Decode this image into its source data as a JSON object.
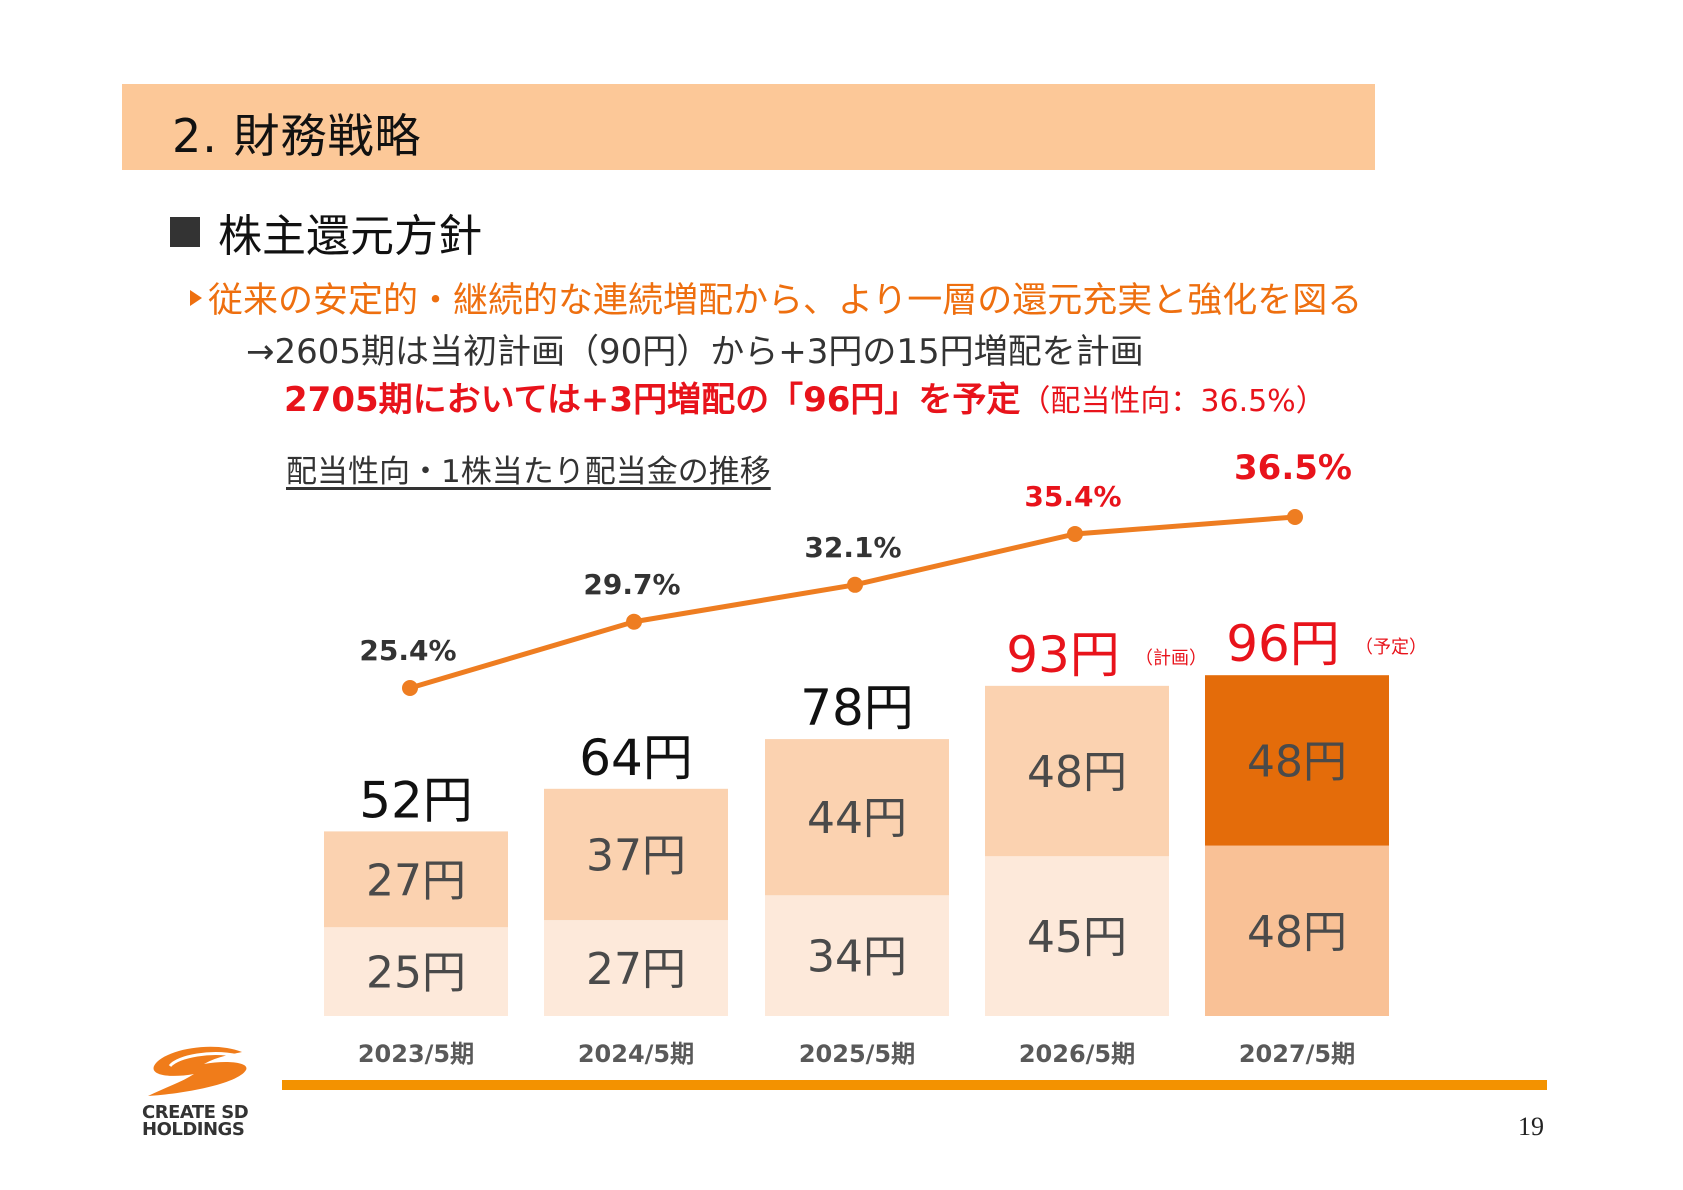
{
  "header": {
    "title": "2.  財務戦略"
  },
  "section": {
    "title": "株主還元方針"
  },
  "text": {
    "line1": "従来の安定的・継続的な連続増配から、より一層の還元充実と強化を図る",
    "line2": "→2605期は当初計画（90円）から+3円の15円増配を計画",
    "line3_main": "2705期においては+3円増配の「96円」を予定",
    "line3_sub": "（配当性向：36.5%）",
    "chart_caption": "配当性向・1株当たり配当金の推移"
  },
  "chart_data": {
    "type": "bar",
    "categories": [
      "2023/5期",
      "2024/5期",
      "2025/5期",
      "2026/5期",
      "2027/5期"
    ],
    "series": [
      {
        "values": [
          25,
          27,
          34,
          45,
          48
        ],
        "labels": [
          "25円",
          "27円",
          "34円",
          "45円",
          "48円"
        ]
      },
      {
        "values": [
          27,
          37,
          44,
          48,
          48
        ],
        "labels": [
          "27円",
          "37円",
          "44円",
          "48円",
          "48円"
        ]
      }
    ],
    "totals": [
      52,
      64,
      78,
      93,
      96
    ],
    "total_labels": [
      "52円",
      "64円",
      "78円",
      "93円",
      "96円"
    ],
    "total_notes": [
      "",
      "",
      "",
      "（計画）",
      "（予定）"
    ],
    "line": {
      "values": [
        25.4,
        29.7,
        32.1,
        35.4,
        36.5
      ],
      "labels": [
        "25.4%",
        "29.7%",
        "32.1%",
        "35.4%",
        "36.5%"
      ]
    },
    "colors": {
      "lower": [
        "#fde9da",
        "#fde9da",
        "#fde9da",
        "#fde9da",
        "#f9c196"
      ],
      "upper": [
        "#fbd2b0",
        "#fbd2b0",
        "#fbd2b0",
        "#fbd2b0",
        "#e46c0a"
      ],
      "line": "#ee7d21",
      "highlight_text": "#e8131b"
    }
  },
  "logo": {
    "line1": "CREATE SD",
    "line2": "HOLDINGS"
  },
  "page_number": "19"
}
